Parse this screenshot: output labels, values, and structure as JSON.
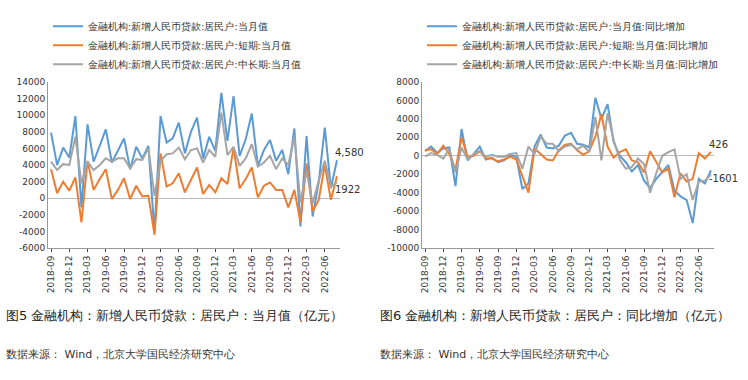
{
  "chart_data": [
    {
      "type": "line",
      "caption": "图5 金融机构：新增人民币贷款：居民户：当月值（亿元）",
      "source": "数据来源： Wind，北京大学国民经济研究中心",
      "legend": "top",
      "grid": false,
      "data_labels": true,
      "categories": [
        "2018-09",
        null,
        null,
        "2018-12",
        null,
        null,
        "2019-03",
        null,
        null,
        "2019-06",
        null,
        null,
        "2019-09",
        null,
        null,
        "2019-12",
        null,
        null,
        "2020-03",
        null,
        null,
        "2020-06",
        null,
        null,
        "2020-09",
        null,
        null,
        "2020-12",
        null,
        null,
        "2021-03",
        null,
        null,
        "2021-06",
        null,
        null,
        "2021-09",
        null,
        null,
        "2021-12",
        null,
        null,
        "2022-03",
        null,
        null,
        "2022-06",
        null,
        null
      ],
      "ylim": [
        -6000,
        14000
      ],
      "yticks": [
        -6000,
        -4000,
        -2000,
        0,
        2000,
        4000,
        6000,
        8000,
        10000,
        12000,
        14000
      ],
      "series": [
        {
          "name": "金融机构:新增人民币贷款:居民户:当月值",
          "color": "#5b9bd5",
          "values": [
            7900,
            4000,
            6100,
            4900,
            9900,
            -1100,
            8900,
            4400,
            6300,
            8300,
            4300,
            5800,
            7200,
            3500,
            6200,
            4800,
            6300,
            -4100,
            9900,
            6700,
            7200,
            9100,
            5400,
            8000,
            9700,
            4800,
            7400,
            5700,
            12700,
            6900,
            12300,
            5100,
            7100,
            10200,
            3900,
            5800,
            7000,
            4500,
            5800,
            2900,
            8400,
            -3400,
            7500,
            -2200,
            1900,
            8500,
            1200,
            4580
          ],
          "value_labels": [
            null,
            null,
            null,
            null,
            null,
            null,
            null,
            null,
            null,
            null,
            null,
            null,
            null,
            null,
            null,
            null,
            null,
            null,
            null,
            null,
            null,
            null,
            null,
            null,
            null,
            null,
            null,
            null,
            null,
            null,
            null,
            null,
            null,
            null,
            null,
            null,
            null,
            null,
            null,
            null,
            null,
            null,
            null,
            null,
            null,
            null,
            null,
            "4,580"
          ]
        },
        {
          "name": "金融机构:新增人民币贷款:居民户:短期:当月值",
          "color": "#ed7d31",
          "values": [
            3500,
            600,
            2000,
            900,
            2500,
            -2900,
            4500,
            1000,
            2300,
            3500,
            -100,
            1000,
            2400,
            -100,
            1500,
            200,
            300,
            -4400,
            5400,
            1400,
            1800,
            3000,
            700,
            2200,
            3700,
            500,
            1600,
            700,
            2400,
            1700,
            6100,
            1200,
            2300,
            3700,
            100,
            1500,
            1900,
            1000,
            1000,
            -1100,
            1000,
            -2900,
            4200,
            -1600,
            -200,
            4000,
            -200,
            2658
          ]
        },
        {
          "name": "金融机构:新增人民币贷款:居民户:中长期:当月值",
          "color": "#a5a5a5",
          "values": [
            4400,
            3400,
            4100,
            4000,
            7400,
            1800,
            4400,
            3400,
            4000,
            4800,
            4400,
            4800,
            4800,
            3600,
            4700,
            4600,
            6000,
            300,
            4500,
            5300,
            5400,
            6100,
            4700,
            5800,
            6000,
            4300,
            5800,
            5000,
            10300,
            5200,
            6200,
            3900,
            4800,
            6500,
            3800,
            4300,
            5100,
            3500,
            4800,
            4000,
            7400,
            -500,
            3300,
            -600,
            2100,
            4500,
            1400,
            1922
          ],
          "value_labels": [
            null,
            null,
            null,
            null,
            null,
            null,
            null,
            null,
            null,
            null,
            null,
            null,
            null,
            null,
            null,
            null,
            null,
            null,
            null,
            null,
            null,
            null,
            null,
            null,
            null,
            null,
            null,
            null,
            null,
            null,
            null,
            null,
            null,
            null,
            null,
            null,
            null,
            null,
            null,
            null,
            null,
            null,
            null,
            null,
            null,
            null,
            null,
            "1922"
          ]
        }
      ]
    },
    {
      "type": "line",
      "caption": "图6 金融机构：新增人民币贷款：居民户：同比增加（亿元）",
      "source": "数据来源： Wind，北京大学国民经济研究中心",
      "legend": "top",
      "grid": false,
      "data_labels": true,
      "categories": [
        "2018-09",
        null,
        null,
        "2018-12",
        null,
        null,
        "2019-03",
        null,
        null,
        "2019-06",
        null,
        null,
        "2019-09",
        null,
        null,
        "2019-12",
        null,
        null,
        "2020-03",
        null,
        null,
        "2020-06",
        null,
        null,
        "2020-09",
        null,
        null,
        "2020-12",
        null,
        null,
        "2021-03",
        null,
        null,
        "2021-06",
        null,
        null,
        "2021-09",
        null,
        null,
        "2021-12",
        null,
        null,
        "2022-03",
        null,
        null,
        "2022-06",
        null,
        null
      ],
      "ylim": [
        -10000,
        8000
      ],
      "yticks": [
        -10000,
        -8000,
        -6000,
        -4000,
        -2000,
        0,
        2000,
        4000,
        6000,
        8000
      ],
      "series": [
        {
          "name": "金融机构:新增人民币贷款:居民户:当月值:同比增加",
          "color": "#5b9bd5",
          "values": [
            500,
            1000,
            300,
            800,
            900,
            -3300,
            2900,
            -500,
            200,
            1000,
            -400,
            -200,
            -700,
            -500,
            100,
            -100,
            -3600,
            -3000,
            1000,
            2300,
            900,
            800,
            1100,
            2200,
            2500,
            1300,
            1200,
            900,
            6300,
            4000,
            5600,
            1500,
            0,
            -700,
            -1700,
            -1000,
            -2700,
            -3500,
            -2500,
            -1800,
            -1000,
            -3800,
            -4400,
            -4800,
            -7300,
            -2500,
            -3000,
            -1601
          ],
          "value_labels": [
            null,
            null,
            null,
            null,
            null,
            null,
            null,
            null,
            null,
            null,
            null,
            null,
            null,
            null,
            null,
            null,
            null,
            null,
            null,
            null,
            null,
            null,
            null,
            null,
            null,
            null,
            null,
            null,
            null,
            null,
            null,
            null,
            null,
            null,
            null,
            null,
            null,
            null,
            null,
            null,
            null,
            null,
            null,
            null,
            null,
            null,
            null,
            "-1601"
          ]
        },
        {
          "name": "金融机构:新增人民币贷款:居民户:短期:当月值:同比增加",
          "color": "#ed7d31",
          "values": [
            600,
            700,
            200,
            1100,
            200,
            -1500,
            2000,
            -100,
            0,
            500,
            -300,
            -300,
            -600,
            -400,
            -100,
            -400,
            -2200,
            -4000,
            800,
            200,
            -400,
            -500,
            600,
            1200,
            1300,
            600,
            100,
            500,
            2100,
            4500,
            1000,
            -200,
            400,
            700,
            -500,
            -700,
            -1800,
            500,
            -600,
            -1800,
            -1400,
            -4500,
            -1900,
            -2800,
            -2500,
            300,
            -300,
            426
          ],
          "value_labels": [
            null,
            null,
            null,
            null,
            null,
            null,
            null,
            null,
            null,
            null,
            null,
            null,
            null,
            null,
            null,
            null,
            null,
            null,
            null,
            null,
            null,
            null,
            null,
            null,
            null,
            null,
            null,
            null,
            null,
            null,
            null,
            null,
            null,
            null,
            null,
            null,
            null,
            null,
            null,
            null,
            null,
            null,
            null,
            null,
            null,
            null,
            null,
            "426"
          ]
        },
        {
          "name": "金融机构:新增人民币贷款:居民户:中长期:当月值:同比增加",
          "color": "#a5a5a5",
          "values": [
            -100,
            300,
            100,
            -300,
            700,
            -1800,
            900,
            -400,
            200,
            500,
            -100,
            100,
            -100,
            -100,
            200,
            300,
            -1400,
            1000,
            200,
            2100,
            1300,
            1300,
            500,
            1000,
            1200,
            700,
            1100,
            400,
            4200,
            -500,
            4600,
            1700,
            -400,
            -1400,
            -1200,
            -300,
            -900,
            -4000,
            -1900,
            0,
            400,
            700,
            -2500,
            -2000,
            -4800,
            -2800,
            -2700,
            -2027
          ]
        }
      ]
    }
  ]
}
